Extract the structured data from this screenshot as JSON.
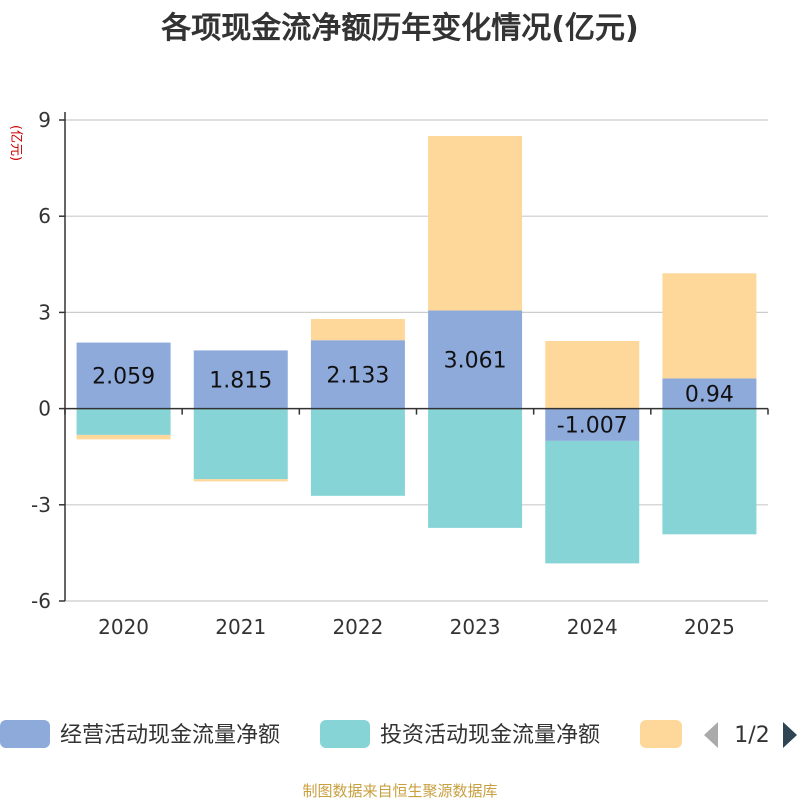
{
  "chart_data": {
    "type": "bar",
    "stacked": true,
    "title": "各项现金流净额历年变化情况(亿元)",
    "ylabel": "(亿元)",
    "categories": [
      "2020",
      "2021",
      "2022",
      "2023",
      "2024",
      "2025"
    ],
    "ylim": [
      -6,
      9
    ],
    "yticks": [
      9,
      6,
      3,
      0,
      -3,
      -6
    ],
    "series": [
      {
        "name": "经营活动现金流量净额",
        "color": "#8eaadb",
        "values": [
          2.059,
          1.815,
          2.133,
          3.061,
          -1.007,
          0.94
        ],
        "labels": [
          "2.059",
          "1.815",
          "2.133",
          "3.061",
          "-1.007",
          "0.94"
        ]
      },
      {
        "name": "投资活动现金流量净额",
        "color": "#86d4d6",
        "values": [
          -0.82,
          -2.2,
          -2.72,
          -3.72,
          -3.82,
          -3.92
        ]
      },
      {
        "name": "",
        "color": "#fdd89a",
        "values": [
          -0.14,
          -0.07,
          0.66,
          5.44,
          2.11,
          3.28
        ]
      }
    ],
    "legend": {
      "page": "1/2",
      "position": "bottom"
    }
  },
  "footer": {
    "source": "制图数据来自恒生聚源数据库"
  }
}
